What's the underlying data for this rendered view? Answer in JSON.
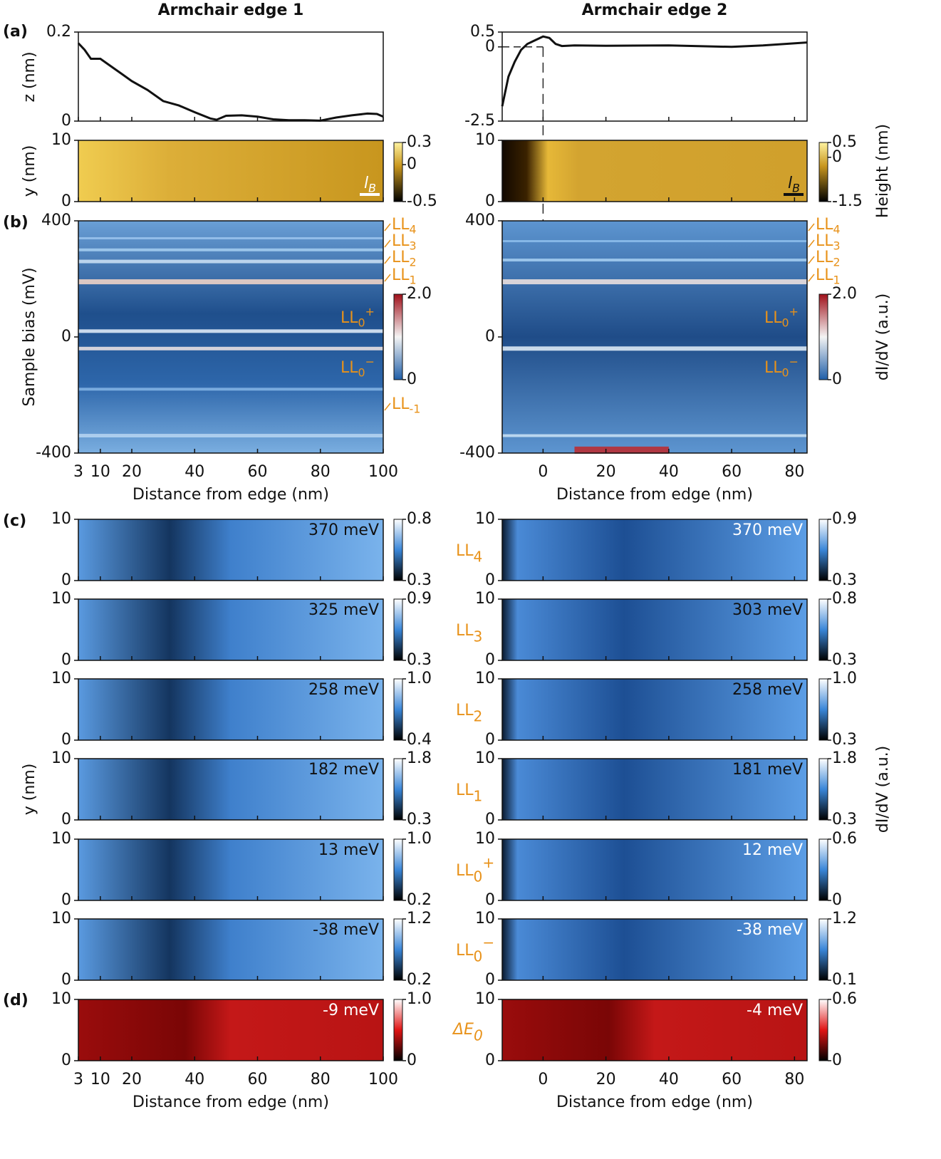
{
  "panel_labels": [
    "(a)",
    "(b)",
    "(c)",
    "(d)"
  ],
  "axis_labels": {
    "z": "z (nm)",
    "y_topo": "y (nm)",
    "bias": "Sample bias (mV)",
    "y_maps": "y (nm)",
    "height": "Height (nm)",
    "didv_bias": "dI/dV (a.u.)",
    "didv_maps": "dI/dV (a.u.)"
  },
  "map_ylim": [
    0,
    10
  ],
  "map_yticks": [
    0,
    10
  ],
  "map_levels": [
    {
      "base": "LL",
      "sub": "4"
    },
    {
      "base": "LL",
      "sub": "3"
    },
    {
      "base": "LL",
      "sub": "2"
    },
    {
      "base": "LL",
      "sub": "1"
    },
    {
      "base": "LL",
      "sub": "0",
      "sup": "+"
    },
    {
      "base": "LL",
      "sub": "0",
      "sup": "−"
    }
  ],
  "delta_label": {
    "base": "ΔE",
    "sub": "0"
  },
  "columns": [
    {
      "title": "Armchair edge 1",
      "xlim": [
        3,
        100
      ],
      "xticks": [
        3,
        10,
        20,
        40,
        60,
        80,
        100
      ],
      "x_label": "Distance from edge (nm)",
      "profile": {
        "ylim": [
          0,
          0.2
        ],
        "yticks": [
          0,
          0.2
        ],
        "x": [
          3,
          5,
          7,
          10,
          13,
          17,
          20,
          25,
          30,
          35,
          40,
          45,
          47,
          50,
          55,
          60,
          65,
          70,
          75,
          80,
          85,
          90,
          95,
          98,
          100
        ],
        "z": [
          0.175,
          0.16,
          0.14,
          0.14,
          0.125,
          0.105,
          0.09,
          0.07,
          0.045,
          0.035,
          0.02,
          0.006,
          0.003,
          0.012,
          0.013,
          0.01,
          0.004,
          0.002,
          0.002,
          0.001,
          0.008,
          0.013,
          0.017,
          0.016,
          0.01
        ]
      },
      "topo": {
        "cbar": [
          0.3,
          0,
          -0.5
        ],
        "scale_bar": {
          "base": "l",
          "sub": "B"
        }
      },
      "bias": {
        "ylim": [
          -400,
          400
        ],
        "yticks": [
          -400,
          0,
          400
        ],
        "cbar": [
          {
            "value": 2,
            "label": "2.0"
          },
          0
        ],
        "levels": [
          {
            "base": "LL",
            "sub": "4"
          },
          {
            "base": "LL",
            "sub": "3"
          },
          {
            "base": "LL",
            "sub": "2"
          },
          {
            "base": "LL",
            "sub": "1"
          },
          {
            "base": "LL",
            "sub": "0",
            "sup": "+"
          },
          {
            "base": "LL",
            "sub": "0",
            "sup": "−"
          },
          {
            "base": "LL",
            "sub": "-1"
          }
        ]
      },
      "maps": [
        {
          "energy": "370 meV",
          "cbar": [
            0.8,
            0.3
          ]
        },
        {
          "energy": "325 meV",
          "cbar": [
            0.9,
            0.3
          ]
        },
        {
          "energy": "258 meV",
          "cbar": [
            {
              "value": 1,
              "label": "1.0"
            },
            0.4
          ]
        },
        {
          "energy": "182 meV",
          "cbar": [
            1.8,
            0.3
          ]
        },
        {
          "energy": "13 meV",
          "cbar": [
            {
              "value": 1,
              "label": "1.0"
            },
            0.2
          ]
        },
        {
          "energy": "-38 meV",
          "cbar": [
            1.2,
            0.2
          ]
        }
      ],
      "delta": {
        "energy": "-9 meV",
        "cbar": [
          {
            "value": 1,
            "label": "1.0"
          },
          0
        ]
      }
    },
    {
      "title": "Armchair edge 2",
      "xlim": [
        -13,
        84
      ],
      "xticks": [
        0,
        20,
        40,
        60,
        80
      ],
      "x_label": "Distance from edge (nm)",
      "profile": {
        "ylim": [
          -2.5,
          0.5
        ],
        "yticks": [
          -2.5,
          0,
          0.5
        ],
        "x": [
          -13,
          -11,
          -9,
          -7,
          -5,
          -3,
          0,
          2,
          4,
          6,
          10,
          20,
          40,
          60,
          70,
          84
        ],
        "z": [
          -2.0,
          -1.0,
          -0.5,
          -0.1,
          0.1,
          0.2,
          0.35,
          0.3,
          0.1,
          0.03,
          0.05,
          0.04,
          0.05,
          0.0,
          0.05,
          0.15
        ]
      },
      "topo": {
        "cbar": [
          0.5,
          0,
          -1.5
        ],
        "scale_bar": {
          "base": "l",
          "sub": "B"
        }
      },
      "bias": {
        "ylim": [
          -400,
          400
        ],
        "yticks": [
          -400,
          0,
          400
        ],
        "cbar": [
          {
            "value": 2,
            "label": "2.0"
          },
          0
        ],
        "levels": [
          {
            "base": "LL",
            "sub": "4"
          },
          {
            "base": "LL",
            "sub": "3"
          },
          {
            "base": "LL",
            "sub": "2"
          },
          {
            "base": "LL",
            "sub": "1"
          },
          {
            "base": "LL",
            "sub": "0",
            "sup": "+"
          },
          {
            "base": "LL",
            "sub": "0",
            "sup": "−"
          }
        ]
      },
      "maps": [
        {
          "energy": "370 meV",
          "cbar": [
            0.9,
            0.3
          ]
        },
        {
          "energy": "303 meV",
          "cbar": [
            0.8,
            0.3
          ]
        },
        {
          "energy": "258 meV",
          "cbar": [
            {
              "value": 1,
              "label": "1.0"
            },
            0.3
          ]
        },
        {
          "energy": "181 meV",
          "cbar": [
            1.8,
            0.3
          ]
        },
        {
          "energy": "12 meV",
          "cbar": [
            0.6,
            0
          ]
        },
        {
          "energy": "-38 meV",
          "cbar": [
            1.2,
            0.1
          ]
        }
      ],
      "delta": {
        "energy": "-4 meV",
        "cbar": [
          0.6,
          0
        ]
      }
    }
  ]
}
